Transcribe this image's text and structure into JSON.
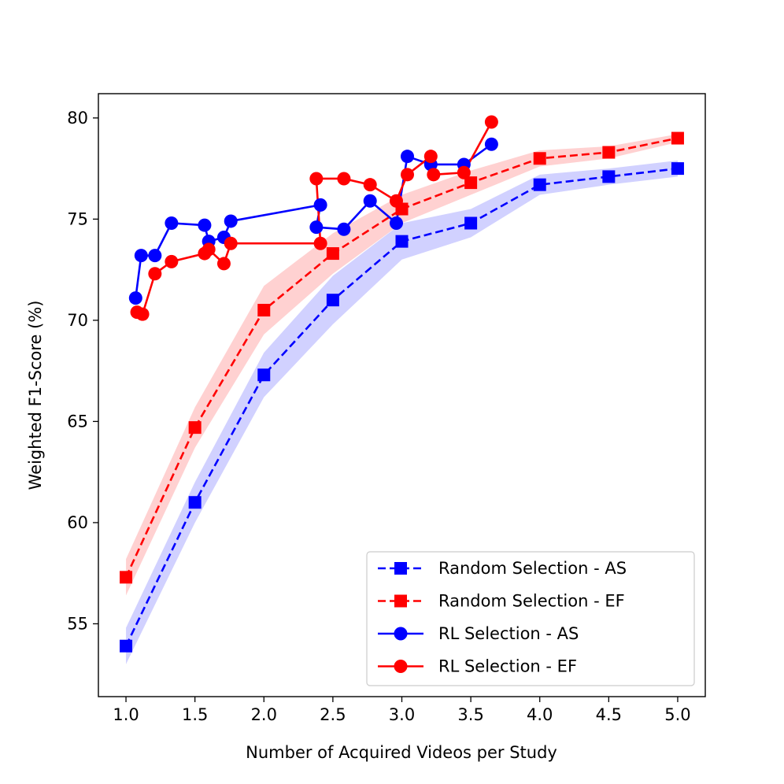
{
  "chart_data": {
    "type": "line",
    "title": "",
    "xlabel": "Number of Acquired Videos per Study",
    "ylabel": "Weighted F1-Score (%)",
    "xlim": [
      0.8,
      5.2
    ],
    "ylim": [
      51.4,
      81.2
    ],
    "xticks": [
      1.0,
      1.5,
      2.0,
      2.5,
      3.0,
      3.5,
      4.0,
      4.5,
      5.0
    ],
    "xtick_labels": [
      "1.0",
      "1.5",
      "2.0",
      "2.5",
      "3.0",
      "3.5",
      "4.0",
      "4.5",
      "5.0"
    ],
    "yticks": [
      55,
      60,
      65,
      70,
      75,
      80
    ],
    "ytick_labels": [
      "55",
      "60",
      "65",
      "70",
      "75",
      "80"
    ],
    "grid": false,
    "legend_position": "lower-right",
    "series": [
      {
        "name": "Random Selection - AS",
        "color": "#0000ff",
        "line_style": "dashed",
        "marker": "square",
        "x": [
          1.0,
          1.5,
          2.0,
          2.5,
          3.0,
          3.5,
          4.0,
          4.5,
          5.0
        ],
        "y": [
          53.9,
          61.0,
          67.3,
          71.0,
          73.9,
          74.8,
          76.7,
          77.1,
          77.5
        ],
        "band_lower": [
          53.0,
          60.0,
          66.2,
          69.8,
          73.0,
          74.1,
          76.2,
          76.7,
          77.1
        ],
        "band_upper": [
          54.8,
          62.0,
          68.4,
          72.2,
          74.8,
          75.5,
          77.2,
          77.5,
          77.9
        ]
      },
      {
        "name": "Random Selection - EF",
        "color": "#ff0000",
        "line_style": "dashed",
        "marker": "square",
        "x": [
          1.0,
          1.5,
          2.0,
          2.5,
          3.0,
          3.5,
          4.0,
          4.5,
          5.0
        ],
        "y": [
          57.3,
          64.7,
          70.5,
          73.3,
          75.5,
          76.8,
          78.0,
          78.3,
          79.0
        ],
        "band_lower": [
          56.4,
          63.7,
          69.3,
          72.3,
          74.8,
          76.2,
          77.6,
          78.0,
          78.8
        ],
        "band_upper": [
          58.2,
          65.7,
          71.7,
          74.3,
          76.2,
          77.4,
          78.4,
          78.6,
          79.2
        ]
      },
      {
        "name": "RL Selection - AS",
        "color": "#0000ff",
        "line_style": "solid",
        "marker": "circle",
        "x": [
          1.07,
          1.11,
          1.21,
          1.33,
          1.57,
          1.6,
          1.71,
          1.76,
          2.41,
          2.38,
          2.58,
          2.77,
          2.96,
          3.04,
          3.21,
          3.45,
          3.65
        ],
        "y": [
          71.1,
          73.2,
          73.2,
          74.8,
          74.7,
          73.9,
          74.1,
          74.9,
          75.7,
          74.6,
          74.5,
          75.9,
          74.8,
          78.1,
          77.7,
          77.7,
          78.7
        ]
      },
      {
        "name": "RL Selection - EF",
        "color": "#ff0000",
        "line_style": "solid",
        "marker": "circle",
        "x": [
          1.08,
          1.12,
          1.21,
          1.33,
          1.57,
          1.6,
          1.71,
          1.76,
          2.41,
          2.38,
          2.58,
          2.77,
          2.96,
          3.04,
          3.21,
          3.23,
          3.45,
          3.65
        ],
        "y": [
          70.4,
          70.3,
          72.3,
          72.9,
          73.3,
          73.5,
          72.8,
          73.8,
          73.8,
          77.0,
          77.0,
          76.7,
          75.9,
          77.2,
          78.1,
          77.2,
          77.3,
          79.8
        ]
      }
    ]
  }
}
